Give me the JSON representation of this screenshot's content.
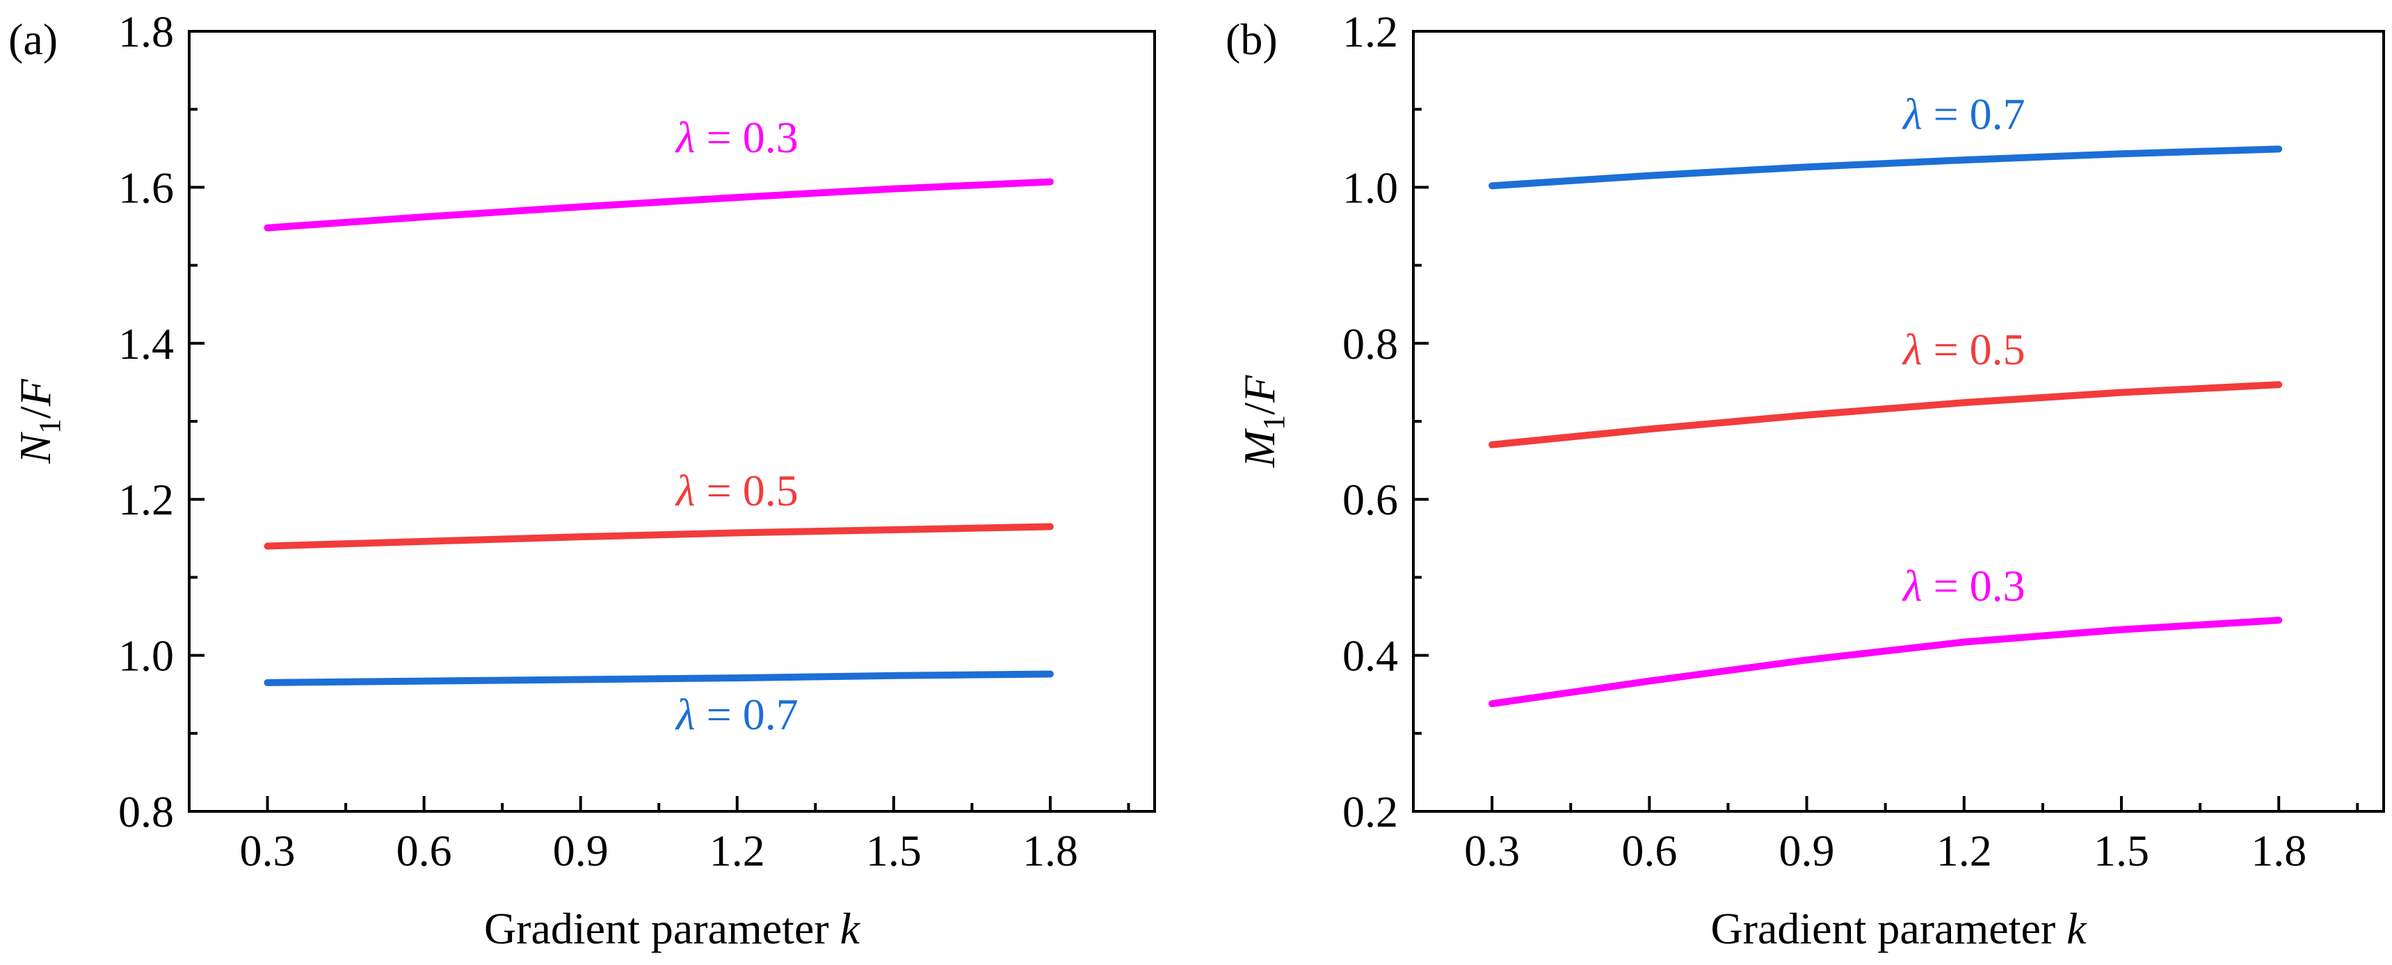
{
  "chart_data": [
    {
      "type": "line",
      "panel_label": "(a)",
      "xlabel": "Gradient parameter",
      "xlabel_var": "k",
      "ylabel": "N",
      "ylabel_sub": "1",
      "ylabel_tail": "/F",
      "xlim": [
        0.15,
        2.0
      ],
      "ylim": [
        0.8,
        1.8
      ],
      "xticks": [
        "0.3",
        "0.6",
        "0.9",
        "1.2",
        "1.5",
        "1.8"
      ],
      "yticks": [
        "0.8",
        "1.0",
        "1.2",
        "1.4",
        "1.6",
        "1.8"
      ],
      "series": [
        {
          "name": "λ = 0.3",
          "symbol": "λ",
          "value_text": "= 0.3",
          "color": "#ff00ff",
          "x": [
            0.3,
            0.6,
            0.9,
            1.2,
            1.5,
            1.8
          ],
          "y": [
            1.548,
            1.562,
            1.575,
            1.587,
            1.598,
            1.607
          ],
          "label_at": [
            1.2,
            1.645
          ]
        },
        {
          "name": "λ = 0.5",
          "symbol": "λ",
          "value_text": "= 0.5",
          "color": "#f23c3c",
          "x": [
            0.3,
            0.6,
            0.9,
            1.2,
            1.5,
            1.8
          ],
          "y": [
            1.14,
            1.146,
            1.152,
            1.157,
            1.161,
            1.165
          ],
          "label_at": [
            1.2,
            1.192
          ]
        },
        {
          "name": "λ = 0.7",
          "symbol": "λ",
          "value_text": "= 0.7",
          "color": "#1c6fd6",
          "x": [
            0.3,
            0.6,
            0.9,
            1.2,
            1.5,
            1.8
          ],
          "y": [
            0.965,
            0.967,
            0.969,
            0.971,
            0.974,
            0.976
          ],
          "label_at": [
            1.2,
            0.905
          ]
        }
      ]
    },
    {
      "type": "line",
      "panel_label": "(b)",
      "xlabel": "Gradient parameter",
      "xlabel_var": "k",
      "ylabel": "M",
      "ylabel_sub": "1",
      "ylabel_tail": "/F",
      "xlim": [
        0.15,
        2.0
      ],
      "ylim": [
        0.2,
        1.2
      ],
      "xticks": [
        "0.3",
        "0.6",
        "0.9",
        "1.2",
        "1.5",
        "1.8"
      ],
      "yticks": [
        "0.2",
        "0.4",
        "0.6",
        "0.8",
        "1.0",
        "1.2"
      ],
      "series": [
        {
          "name": "λ = 0.7",
          "symbol": "λ",
          "value_text": "= 0.7",
          "color": "#1c6fd6",
          "x": [
            0.3,
            0.6,
            0.9,
            1.2,
            1.5,
            1.8
          ],
          "y": [
            1.002,
            1.015,
            1.026,
            1.035,
            1.043,
            1.049
          ],
          "label_at": [
            1.2,
            1.075
          ]
        },
        {
          "name": "λ = 0.5",
          "symbol": "λ",
          "value_text": "= 0.5",
          "color": "#f23c3c",
          "x": [
            0.3,
            0.6,
            0.9,
            1.2,
            1.5,
            1.8
          ],
          "y": [
            0.67,
            0.69,
            0.708,
            0.724,
            0.737,
            0.747
          ],
          "label_at": [
            1.2,
            0.773
          ]
        },
        {
          "name": "λ = 0.3",
          "symbol": "λ",
          "value_text": "= 0.3",
          "color": "#ff00ff",
          "x": [
            0.3,
            0.6,
            0.9,
            1.2,
            1.5,
            1.8
          ],
          "y": [
            0.338,
            0.367,
            0.394,
            0.417,
            0.433,
            0.445
          ],
          "label_at": [
            1.2,
            0.47
          ]
        }
      ]
    }
  ]
}
